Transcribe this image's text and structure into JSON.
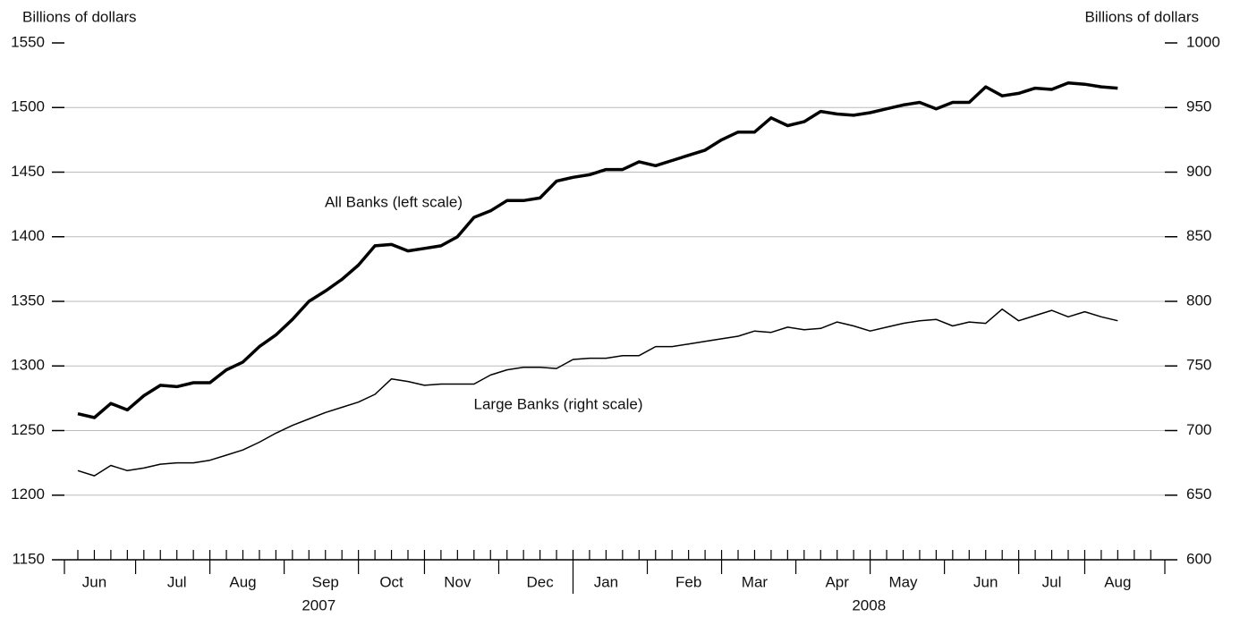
{
  "chart_data": {
    "type": "line",
    "y_label": "Billions of dollars",
    "y2_label": "Billions of dollars",
    "annotations": [
      "All Banks (left scale)",
      "Large Banks (right scale)"
    ],
    "categories": [
      null,
      "Jun",
      null,
      null,
      null,
      null,
      "Jul",
      null,
      null,
      null,
      "Aug",
      null,
      null,
      null,
      null,
      "Sep",
      null,
      null,
      null,
      "Oct",
      null,
      null,
      null,
      "Nov",
      null,
      null,
      null,
      null,
      "Dec",
      null,
      null,
      null,
      "Jan",
      null,
      null,
      null,
      null,
      "Feb",
      null,
      null,
      null,
      "Mar",
      null,
      null,
      null,
      null,
      "Apr",
      null,
      null,
      null,
      "May",
      null,
      null,
      null,
      null,
      "Jun",
      null,
      null,
      null,
      "Jul",
      null,
      null,
      null,
      "Aug",
      null,
      null
    ],
    "years": [
      "2007",
      "2008"
    ],
    "series": [
      {
        "name": "All Banks",
        "color": "#000000",
        "axis": "y",
        "values": [
          1263,
          1260,
          1271,
          1266,
          1277,
          1285,
          1284,
          1287,
          1287,
          1297,
          1303,
          1315,
          1324,
          1336,
          1350,
          1358,
          1367,
          1378,
          1393,
          1394,
          1389,
          1391,
          1393,
          1400,
          1415,
          1420,
          1428,
          1428,
          1430,
          1443,
          1446,
          1448,
          1452,
          1452,
          1458,
          1455,
          1459,
          1463,
          1467,
          1475,
          1481,
          1481,
          1492,
          1486,
          1489,
          1497,
          1495,
          1494,
          1496,
          1499,
          1502,
          1504,
          1499,
          1504,
          1504,
          1516,
          1509,
          1511,
          1515,
          1514,
          1519,
          1518,
          1516,
          1515,
          null,
          null
        ]
      },
      {
        "name": "Large Banks",
        "color": "#000000",
        "axis": "y2",
        "values": [
          669,
          665,
          673,
          669,
          671,
          674,
          675,
          675,
          677,
          681,
          685,
          691,
          698,
          704,
          709,
          714,
          718,
          722,
          728,
          740,
          738,
          735,
          736,
          736,
          736,
          743,
          747,
          749,
          749,
          748,
          755,
          756,
          756,
          758,
          758,
          765,
          765,
          767,
          769,
          771,
          773,
          777,
          776,
          780,
          778,
          779,
          784,
          781,
          777,
          780,
          783,
          785,
          786,
          781,
          784,
          783,
          794,
          785,
          789,
          793,
          788,
          792,
          788,
          785,
          null,
          null
        ]
      }
    ],
    "ylim": [
      1150,
      1550
    ],
    "yticks": [
      1150,
      1200,
      1250,
      1300,
      1350,
      1400,
      1450,
      1500,
      1550
    ],
    "y2lim": [
      600,
      1000
    ],
    "y2ticks": [
      600,
      650,
      700,
      750,
      800,
      850,
      900,
      950,
      1000
    ],
    "grid": true
  }
}
